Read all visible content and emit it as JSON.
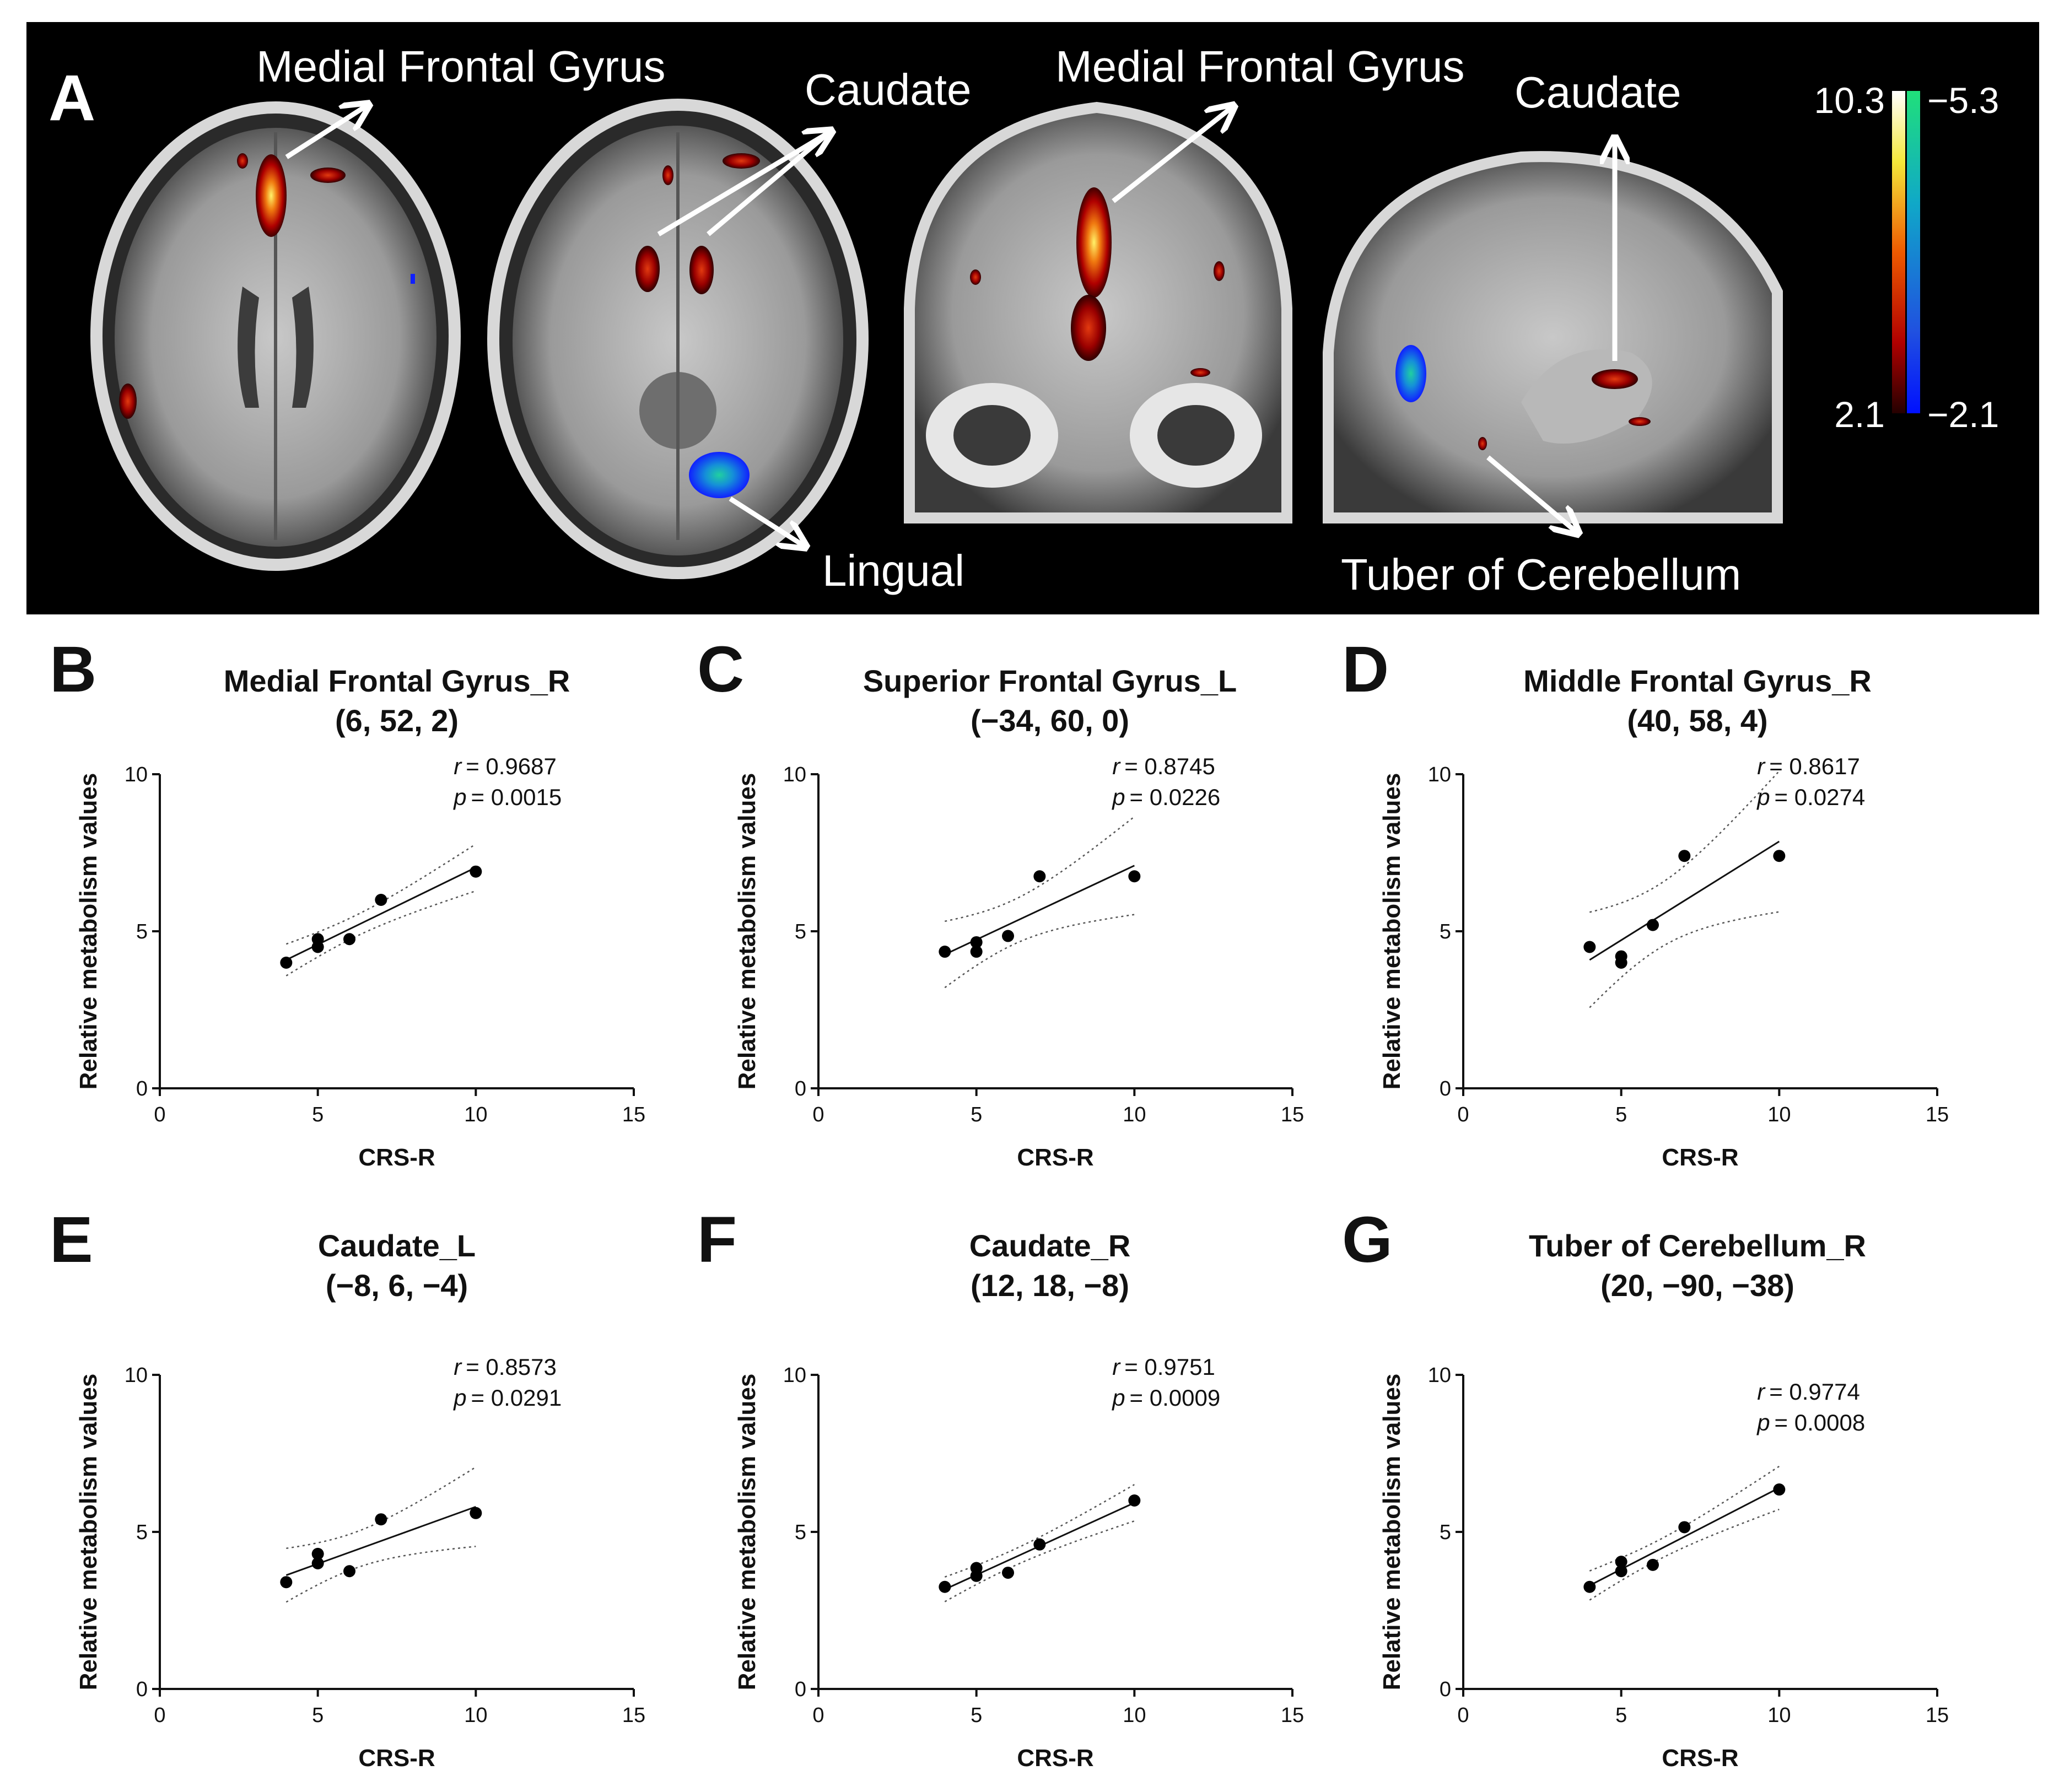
{
  "panel_a": {
    "letter": "A",
    "labels": {
      "medial_frontal_1": "Medial Frontal Gyrus",
      "caudate_1": "Caudate",
      "lingual": "Lingual",
      "medial_frontal_2": "Medial Frontal Gyrus",
      "caudate_2": "Caudate",
      "tuber": "Tuber of Cerebellum"
    },
    "colorbar": {
      "pos_max": "10.3",
      "pos_min": "2.1",
      "neg_max": "−5.3",
      "neg_min": "−2.1"
    }
  },
  "chart_data": [
    {
      "panel": "B",
      "type": "scatter",
      "title": "Medial Frontal Gyrus_R",
      "subtitle": "(6, 52, 2)",
      "xlabel": "CRS-R",
      "ylabel": "Relative metabolism values",
      "xlim": [
        0,
        15
      ],
      "ylim": [
        0,
        10
      ],
      "xticks": [
        "0",
        "5",
        "10",
        "15"
      ],
      "yticks": [
        "0",
        "5",
        "10"
      ],
      "x": [
        4,
        5,
        5,
        6,
        7,
        10
      ],
      "y": [
        4.0,
        4.5,
        4.75,
        4.75,
        6.0,
        6.9
      ],
      "r_label": "r",
      "r_value": "= 0.9687",
      "p_label": "p",
      "p_value": "= 0.0015"
    },
    {
      "panel": "C",
      "type": "scatter",
      "title": "Superior Frontal Gyrus_L",
      "subtitle": "(−34, 60, 0)",
      "xlabel": "CRS-R",
      "ylabel": "Relative metabolism values",
      "xlim": [
        0,
        15
      ],
      "ylim": [
        0,
        10
      ],
      "xticks": [
        "0",
        "5",
        "10",
        "15"
      ],
      "yticks": [
        "0",
        "5",
        "10"
      ],
      "x": [
        4,
        5,
        5,
        6,
        7,
        10
      ],
      "y": [
        4.35,
        4.35,
        4.65,
        4.85,
        6.75,
        6.75
      ],
      "r_label": "r",
      "r_value": "= 0.8745",
      "p_label": "p",
      "p_value": "= 0.0226"
    },
    {
      "panel": "D",
      "type": "scatter",
      "title": "Middle Frontal Gyrus_R",
      "subtitle": "(40, 58, 4)",
      "xlabel": "CRS-R",
      "ylabel": "Relative metabolism values",
      "xlim": [
        0,
        15
      ],
      "ylim": [
        0,
        10
      ],
      "xticks": [
        "0",
        "5",
        "10",
        "15"
      ],
      "yticks": [
        "0",
        "5",
        "10"
      ],
      "x": [
        4,
        5,
        5,
        6,
        7,
        10
      ],
      "y": [
        4.5,
        4.0,
        4.2,
        5.2,
        7.4,
        7.4
      ],
      "r_label": "r",
      "r_value": "= 0.8617",
      "p_label": "p",
      "p_value": "= 0.0274"
    },
    {
      "panel": "E",
      "type": "scatter",
      "title": "Caudate_L",
      "subtitle": "(−8, 6, −4)",
      "xlabel": "CRS-R",
      "ylabel": "Relative metabolism values",
      "xlim": [
        0,
        15
      ],
      "ylim": [
        0,
        10
      ],
      "xticks": [
        "0",
        "5",
        "10",
        "15"
      ],
      "yticks": [
        "0",
        "5",
        "10"
      ],
      "x": [
        4,
        5,
        5,
        6,
        7,
        10
      ],
      "y": [
        3.4,
        4.0,
        4.3,
        3.75,
        5.4,
        5.6
      ],
      "r_label": "r",
      "r_value": "= 0.8573",
      "p_label": "p",
      "p_value": "= 0.0291"
    },
    {
      "panel": "F",
      "type": "scatter",
      "title": "Caudate_R",
      "subtitle": "(12, 18, −8)",
      "xlabel": "CRS-R",
      "ylabel": "Relative metabolism values",
      "xlim": [
        0,
        15
      ],
      "ylim": [
        0,
        10
      ],
      "xticks": [
        "0",
        "5",
        "10",
        "15"
      ],
      "yticks": [
        "0",
        "5",
        "10"
      ],
      "x": [
        4,
        5,
        5,
        6,
        7,
        10
      ],
      "y": [
        3.25,
        3.6,
        3.85,
        3.7,
        4.6,
        6.0
      ],
      "r_label": "r",
      "r_value": "= 0.9751",
      "p_label": "p",
      "p_value": "= 0.0009"
    },
    {
      "panel": "G",
      "type": "scatter",
      "title": "Tuber of Cerebellum_R",
      "subtitle": "(20, −90, −38)",
      "xlabel": "CRS-R",
      "ylabel": "Relative metabolism values",
      "xlim": [
        0,
        15
      ],
      "ylim": [
        0,
        10
      ],
      "xticks": [
        "0",
        "5",
        "10",
        "15"
      ],
      "yticks": [
        "0",
        "5",
        "10"
      ],
      "x": [
        4,
        5,
        5,
        6,
        7,
        10
      ],
      "y": [
        3.25,
        3.75,
        4.05,
        3.95,
        5.15,
        6.35
      ],
      "r_label": "r",
      "r_value": "= 0.9774",
      "p_label": "p",
      "p_value": "= 0.0008"
    }
  ]
}
